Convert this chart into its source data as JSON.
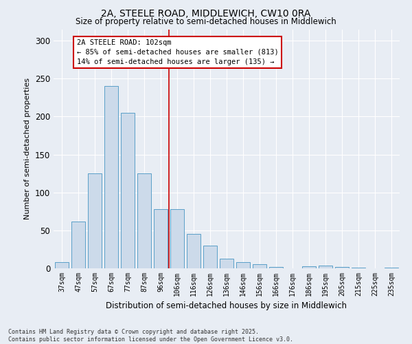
{
  "title1": "2A, STEELE ROAD, MIDDLEWICH, CW10 0RA",
  "title2": "Size of property relative to semi-detached houses in Middlewich",
  "xlabel": "Distribution of semi-detached houses by size in Middlewich",
  "ylabel": "Number of semi-detached properties",
  "categories": [
    "37sqm",
    "47sqm",
    "57sqm",
    "67sqm",
    "77sqm",
    "87sqm",
    "96sqm",
    "106sqm",
    "116sqm",
    "126sqm",
    "136sqm",
    "146sqm",
    "156sqm",
    "166sqm",
    "176sqm",
    "186sqm",
    "195sqm",
    "205sqm",
    "215sqm",
    "225sqm",
    "235sqm"
  ],
  "values": [
    8,
    62,
    125,
    240,
    205,
    125,
    78,
    78,
    45,
    30,
    13,
    8,
    5,
    2,
    0,
    3,
    4,
    2,
    1,
    0,
    1
  ],
  "bar_color": "#ccdaea",
  "bar_edge_color": "#5a9fc8",
  "vline_color": "#cc0000",
  "vline_x_index": 7,
  "annotation_title": "2A STEELE ROAD: 102sqm",
  "annotation_line1": "← 85% of semi-detached houses are smaller (813)",
  "annotation_line2": "14% of semi-detached houses are larger (135) →",
  "annotation_box_color": "white",
  "annotation_box_edge": "#cc0000",
  "ylim": [
    0,
    315
  ],
  "yticks": [
    0,
    50,
    100,
    150,
    200,
    250,
    300
  ],
  "footnote1": "Contains HM Land Registry data © Crown copyright and database right 2025.",
  "footnote2": "Contains public sector information licensed under the Open Government Licence v3.0.",
  "background_color": "#e8edf4"
}
